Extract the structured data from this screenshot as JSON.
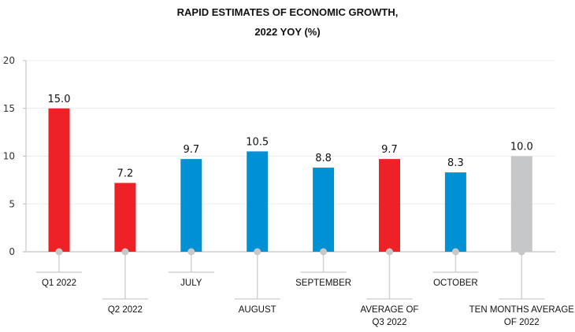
{
  "chart_data": {
    "type": "bar",
    "title": "RAPID ESTIMATES OF ECONOMIC GROWTH,",
    "subtitle": "2022 YOY  (%)",
    "xlabel": "",
    "ylabel": "",
    "ylim": [
      0,
      20
    ],
    "yticks": [
      0,
      5,
      10,
      15,
      20
    ],
    "grid": true,
    "legend": "none",
    "categories": [
      {
        "lines": [
          "Q1 2022"
        ]
      },
      {
        "lines": [
          "Q2 2022"
        ]
      },
      {
        "lines": [
          "JULY"
        ]
      },
      {
        "lines": [
          "AUGUST"
        ]
      },
      {
        "lines": [
          "SEPTEMBER"
        ]
      },
      {
        "lines": [
          "AVERAGE OF",
          "Q3 2022"
        ]
      },
      {
        "lines": [
          "OCTOBER"
        ]
      },
      {
        "lines": [
          "TEN MONTHS AVERAGE",
          "OF 2022"
        ]
      }
    ],
    "values": [
      15.0,
      7.2,
      9.7,
      10.5,
      8.8,
      9.7,
      8.3,
      10.0
    ],
    "value_labels": [
      "15.0",
      "7.2",
      "9.7",
      "10.5",
      "8.8",
      "9.7",
      "8.3",
      "10.0"
    ],
    "bar_colors": [
      "#ee2127",
      "#ee2127",
      "#0090d4",
      "#0090d4",
      "#0090d4",
      "#ee2127",
      "#0090d4",
      "#c6c7c9"
    ],
    "label_levels": [
      0,
      1,
      0,
      1,
      0,
      1,
      0,
      1
    ]
  }
}
